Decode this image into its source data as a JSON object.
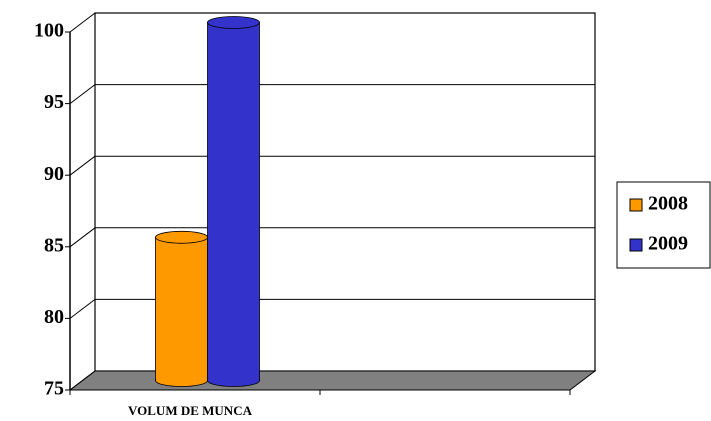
{
  "chart_data": {
    "type": "bar",
    "categories": [
      "VOLUM DE MUNCA",
      null
    ],
    "series": [
      {
        "name": "2008",
        "color": "#ff9900",
        "values": [
          85,
          null
        ]
      },
      {
        "name": "2009",
        "color": "#3333cc",
        "values": [
          100,
          null
        ]
      }
    ],
    "ylim": [
      75,
      100
    ],
    "yticks": [
      75,
      80,
      85,
      90,
      95,
      100
    ],
    "grid": true,
    "legend": "right"
  }
}
